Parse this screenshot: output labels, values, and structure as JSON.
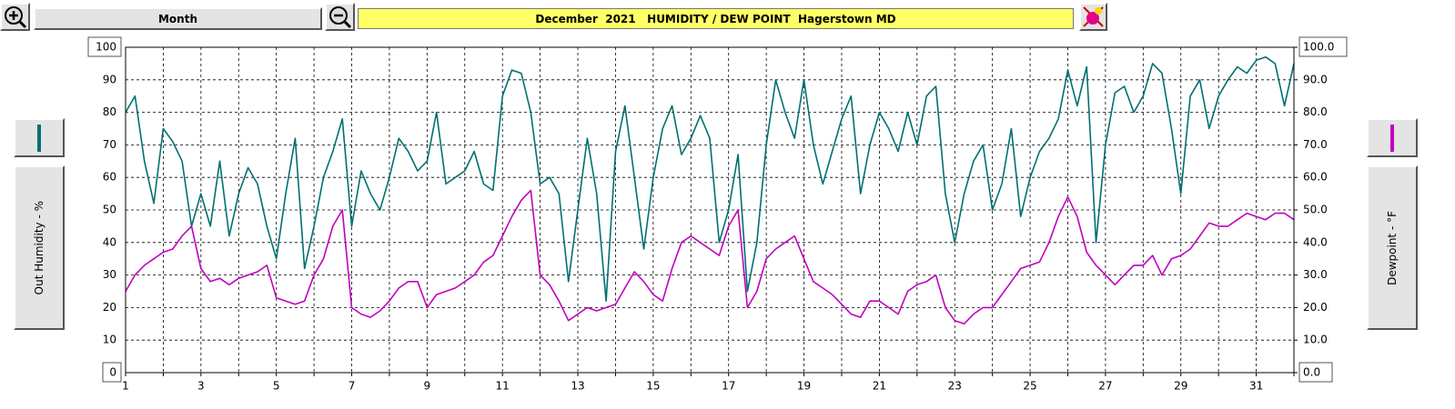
{
  "chart_data": {
    "type": "line",
    "period_button": "Month",
    "title": "December  2021   HUMIDITY / DEW POINT  Hagerstown MD",
    "y_label": "Out Humidity - %",
    "y2_label": "Dewpoint - °F",
    "xlim": [
      1,
      32
    ],
    "xticks": [
      1,
      3,
      5,
      7,
      9,
      11,
      13,
      15,
      17,
      19,
      21,
      23,
      25,
      27,
      29,
      31
    ],
    "x_minor_ticks": [
      2,
      4,
      6,
      8,
      10,
      12,
      14,
      16,
      18,
      20,
      22,
      24,
      26,
      28,
      30,
      32
    ],
    "ylim": [
      0,
      100
    ],
    "yticks": [
      0,
      10,
      20,
      30,
      40,
      50,
      60,
      70,
      80,
      90,
      100
    ],
    "y2lim": [
      0,
      100
    ],
    "y2ticks": [
      {
        "value": 0,
        "label": "0.0"
      },
      {
        "value": 10,
        "label": "10.0"
      },
      {
        "value": 20,
        "label": "20.0"
      },
      {
        "value": 30,
        "label": "30.0"
      },
      {
        "value": 40,
        "label": "40.0"
      },
      {
        "value": 50,
        "label": "50.0"
      },
      {
        "value": 60,
        "label": "60.0"
      },
      {
        "value": 70,
        "label": "70.0"
      },
      {
        "value": 80,
        "label": "80.0"
      },
      {
        "value": 90,
        "label": "90.0"
      },
      {
        "value": 100,
        "label": "100.0"
      }
    ],
    "grid": true,
    "x": [
      1,
      1.25,
      1.5,
      1.75,
      2,
      2.25,
      2.5,
      2.75,
      3,
      3.25,
      3.5,
      3.75,
      4,
      4.25,
      4.5,
      4.75,
      5,
      5.25,
      5.5,
      5.75,
      6,
      6.25,
      6.5,
      6.75,
      7,
      7.25,
      7.5,
      7.75,
      8,
      8.25,
      8.5,
      8.75,
      9,
      9.25,
      9.5,
      9.75,
      10,
      10.25,
      10.5,
      10.75,
      11,
      11.25,
      11.5,
      11.75,
      12,
      12.25,
      12.5,
      12.75,
      13,
      13.25,
      13.5,
      13.75,
      14,
      14.25,
      14.5,
      14.75,
      15,
      15.25,
      15.5,
      15.75,
      16,
      16.25,
      16.5,
      16.75,
      17,
      17.25,
      17.5,
      17.75,
      18,
      18.25,
      18.5,
      18.75,
      19,
      19.25,
      19.5,
      19.75,
      20,
      20.25,
      20.5,
      20.75,
      21,
      21.25,
      21.5,
      21.75,
      22,
      22.25,
      22.5,
      22.75,
      23,
      23.25,
      23.5,
      23.75,
      24,
      24.25,
      24.5,
      24.75,
      25,
      25.25,
      25.5,
      25.75,
      26,
      26.25,
      26.5,
      26.75,
      27,
      27.25,
      27.5,
      27.75,
      28,
      28.25,
      28.5,
      28.75,
      29,
      29.25,
      29.5,
      29.75,
      30,
      30.25,
      30.5,
      30.75,
      31,
      31.25,
      31.5,
      31.75,
      32
    ],
    "series": [
      {
        "name": "Out Humidity",
        "color": "#007070",
        "axis": "y",
        "values": [
          80,
          85,
          65,
          52,
          75,
          71,
          65,
          45,
          55,
          45,
          65,
          42,
          55,
          63,
          58,
          45,
          35,
          55,
          72,
          32,
          45,
          60,
          68,
          78,
          45,
          62,
          55,
          50,
          60,
          72,
          68,
          62,
          65,
          80,
          58,
          60,
          62,
          68,
          58,
          56,
          85,
          93,
          92,
          80,
          58,
          60,
          55,
          28,
          50,
          72,
          55,
          22,
          68,
          82,
          60,
          38,
          60,
          75,
          82,
          67,
          72,
          79,
          72,
          40,
          50,
          67,
          25,
          40,
          70,
          90,
          80,
          72,
          90,
          70,
          58,
          68,
          78,
          85,
          55,
          70,
          80,
          75,
          68,
          80,
          70,
          85,
          88,
          55,
          40,
          55,
          65,
          70,
          50,
          58,
          75,
          48,
          60,
          68,
          72,
          78,
          93,
          82,
          94,
          40,
          70,
          86,
          88,
          80,
          85,
          95,
          92,
          75,
          55,
          85,
          90,
          75,
          85,
          90,
          94,
          92,
          96,
          97,
          95,
          82,
          95
        ]
      },
      {
        "name": "Dewpoint",
        "color": "#c000c0",
        "axis": "y2",
        "values": [
          25,
          30,
          33,
          35,
          37,
          38,
          42,
          45,
          32,
          28,
          29,
          27,
          29,
          30,
          31,
          33,
          23,
          22,
          21,
          22,
          30,
          35,
          45,
          50,
          20,
          18,
          17,
          19,
          22,
          26,
          28,
          28,
          20,
          24,
          25,
          26,
          28,
          30,
          34,
          36,
          42,
          48,
          53,
          56,
          30,
          27,
          22,
          16,
          18,
          20,
          19,
          20,
          21,
          26,
          31,
          28,
          24,
          22,
          32,
          40,
          42,
          40,
          38,
          36,
          45,
          50,
          20,
          25,
          35,
          38,
          40,
          42,
          35,
          28,
          26,
          24,
          21,
          18,
          17,
          22,
          22,
          20,
          18,
          25,
          27,
          28,
          30,
          20,
          16,
          15,
          18,
          20,
          20,
          24,
          28,
          32,
          33,
          34,
          40,
          48,
          54,
          48,
          37,
          33,
          30,
          27,
          30,
          33,
          33,
          36,
          30,
          35,
          36,
          38,
          42,
          46,
          45,
          45,
          47,
          49,
          48,
          47,
          49,
          49,
          47
        ]
      }
    ]
  }
}
